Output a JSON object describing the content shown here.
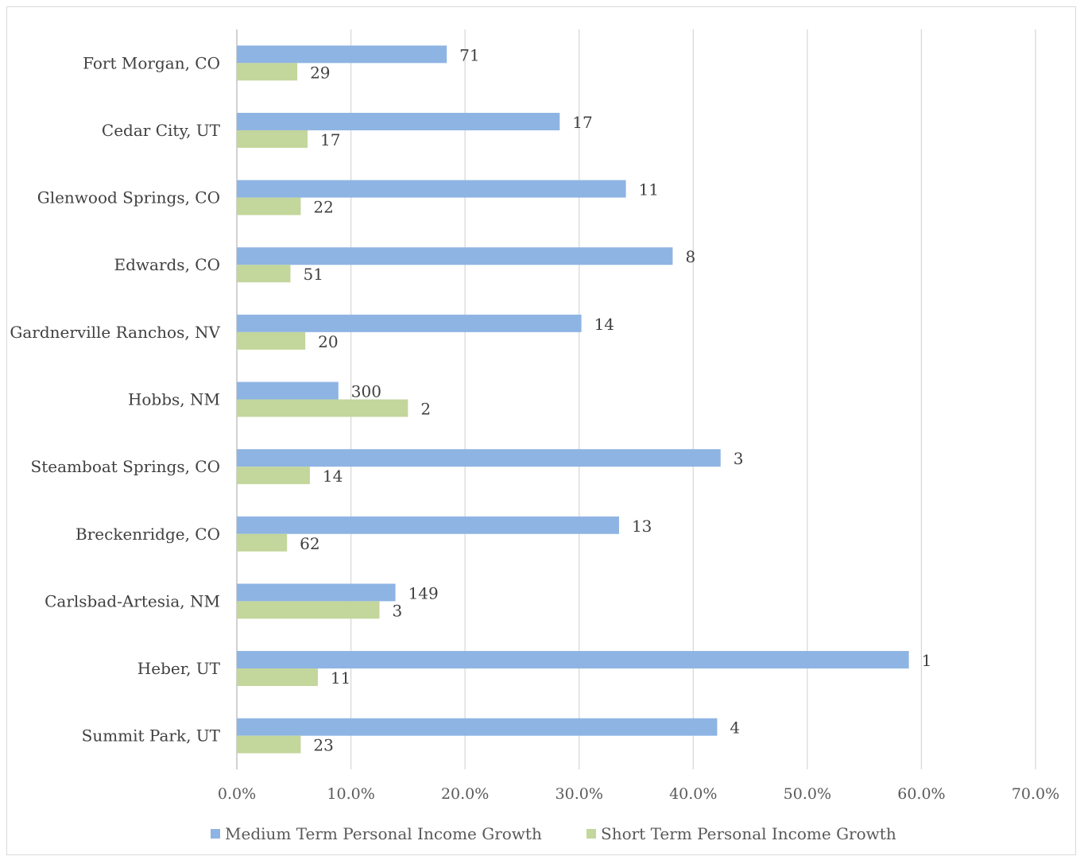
{
  "chart_data": {
    "type": "bar",
    "orientation": "horizontal",
    "categories": [
      "Fort Morgan, CO",
      "Cedar City, UT",
      "Glenwood Springs, CO",
      "Edwards, CO",
      "Gardnerville Ranchos, NV",
      "Hobbs, NM",
      "Steamboat Springs, CO",
      "Breckenridge, CO",
      "Carlsbad-Artesia, NM",
      "Heber, UT",
      "Summit Park, UT"
    ],
    "series": [
      {
        "name": "Medium Term Personal Income Growth",
        "color": "#8eb4e3",
        "values": [
          18.4,
          28.3,
          34.1,
          38.2,
          30.2,
          8.9,
          42.4,
          33.5,
          13.9,
          58.9,
          42.1
        ],
        "data_labels": [
          "71",
          "17",
          "11",
          "8",
          "14",
          "300",
          "3",
          "13",
          "149",
          "1",
          "4"
        ]
      },
      {
        "name": "Short Term Personal Income Growth",
        "color": "#c3d69b",
        "values": [
          5.3,
          6.2,
          5.6,
          4.7,
          6.0,
          15.0,
          6.4,
          4.4,
          12.5,
          7.1,
          5.6
        ],
        "data_labels": [
          "29",
          "17",
          "22",
          "51",
          "20",
          "2",
          "14",
          "62",
          "3",
          "11",
          "23"
        ]
      }
    ],
    "x_ticks": [
      "0.0%",
      "10.0%",
      "20.0%",
      "30.0%",
      "40.0%",
      "50.0%",
      "60.0%",
      "70.0%"
    ],
    "xlim": [
      0,
      70
    ],
    "grid": "vertical",
    "legend_position": "bottom",
    "title": "",
    "xlabel": "",
    "ylabel": ""
  }
}
